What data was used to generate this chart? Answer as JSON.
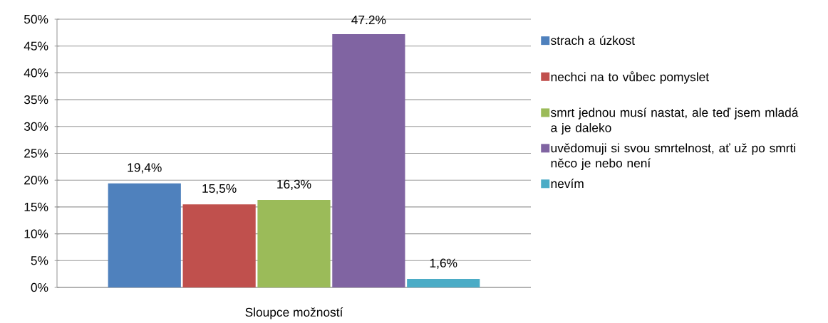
{
  "chart_data": {
    "type": "bar",
    "categories": [
      "Sloupce možností"
    ],
    "series": [
      {
        "name": "strach a úzkost",
        "color": "#4f81bd",
        "values": [
          19.4
        ],
        "value_labels": [
          "19,4%"
        ]
      },
      {
        "name": "nechci na to vůbec pomyslet",
        "color": "#c0504d",
        "values": [
          15.5
        ],
        "value_labels": [
          "15,5%"
        ]
      },
      {
        "name": "smrt jednou musí nastat, ale teď jsem mladá a je daleko",
        "color": "#9bbb59",
        "values": [
          16.3
        ],
        "value_labels": [
          "16,3%"
        ]
      },
      {
        "name": "uvědomuji si svou smrtelnost, ať už po smrti něco je nebo není",
        "color": "#8064a2",
        "values": [
          47.2
        ],
        "value_labels": [
          "47.2%"
        ]
      },
      {
        "name": "nevím",
        "color": "#4bacc6",
        "values": [
          1.6
        ],
        "value_labels": [
          "1,6%"
        ]
      }
    ],
    "ylim": [
      0,
      50
    ],
    "yticks": [
      {
        "value": 0,
        "label": "0%"
      },
      {
        "value": 5,
        "label": "5%"
      },
      {
        "value": 10,
        "label": "10%"
      },
      {
        "value": 15,
        "label": "15%"
      },
      {
        "value": 20,
        "label": "20%"
      },
      {
        "value": 25,
        "label": "25%"
      },
      {
        "value": 30,
        "label": "30%"
      },
      {
        "value": 35,
        "label": "35%"
      },
      {
        "value": 40,
        "label": "40%"
      },
      {
        "value": 45,
        "label": "45%"
      },
      {
        "value": 50,
        "label": "50%"
      }
    ],
    "grid": "y",
    "legend": "right"
  }
}
